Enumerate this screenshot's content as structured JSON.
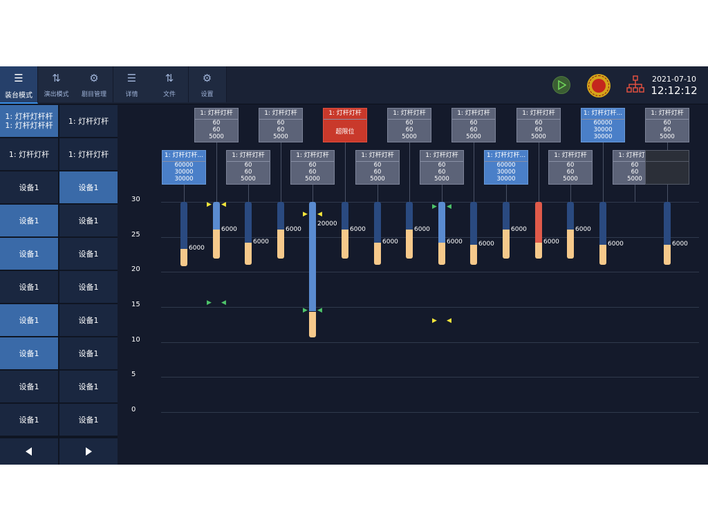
{
  "toolbar": {
    "items": [
      {
        "label": "装台模式",
        "icon": "list-icon"
      },
      {
        "label": "演出模式",
        "icon": "transfer-icon"
      },
      {
        "label": "剧目管理",
        "icon": "gear-icon"
      },
      {
        "label": "详情",
        "icon": "list-icon"
      },
      {
        "label": "文件",
        "icon": "transfer-icon"
      },
      {
        "label": "设置",
        "icon": "gear-icon"
      }
    ],
    "date": "2021-07-10",
    "time": "12:12:12"
  },
  "left_panel": {
    "rows": [
      [
        "1: 灯杆灯杆杆\n1: 灯杆灯杆杆",
        "1: 灯杆灯杆"
      ],
      [
        "1: 灯杆灯杆",
        "1: 灯杆灯杆"
      ],
      [
        "设备1",
        "设备1"
      ],
      [
        "设备1",
        "设备1"
      ],
      [
        "设备1",
        "设备1"
      ],
      [
        "设备1",
        "设备1"
      ],
      [
        "设备1",
        "设备1"
      ],
      [
        "设备1",
        "设备1"
      ],
      [
        "设备1",
        "设备1"
      ],
      [
        "设备1",
        "设备1"
      ]
    ],
    "prev_icon": "arrow-left-icon",
    "next_icon": "arrow-right-icon"
  },
  "chart_data": {
    "type": "bar",
    "yticks": [
      "30",
      "25",
      "20",
      "15",
      "10",
      "5",
      "0"
    ],
    "ylim": [
      0,
      30
    ],
    "grid": true,
    "bars": [
      {
        "top": 30,
        "split": 23.3,
        "bottom": 20.8,
        "label": "6000",
        "style": "normal"
      },
      {
        "top": 30,
        "split": 26.0,
        "bottom": 21.9,
        "label": "6000",
        "style": "light"
      },
      {
        "top": 30,
        "split": 24.2,
        "bottom": 21.0,
        "label": "6000",
        "style": "normal"
      },
      {
        "top": 30,
        "split": 26.0,
        "bottom": 21.9,
        "label": "6000",
        "style": "normal"
      },
      {
        "top": 30,
        "split": 14.4,
        "bottom": 10.7,
        "label": "20000",
        "style": "light"
      },
      {
        "top": 30,
        "split": 26.0,
        "bottom": 21.9,
        "label": "6000",
        "style": "normal"
      },
      {
        "top": 30,
        "split": 24.2,
        "bottom": 21.0,
        "label": "6000",
        "style": "normal"
      },
      {
        "top": 30,
        "split": 26.0,
        "bottom": 21.9,
        "label": "6000",
        "style": "normal"
      },
      {
        "top": 30,
        "split": 24.2,
        "bottom": 21.0,
        "label": "6000",
        "style": "light"
      },
      {
        "top": 30,
        "split": 23.9,
        "bottom": 21.0,
        "label": "6000",
        "style": "normal"
      },
      {
        "top": 30,
        "split": 26.0,
        "bottom": 21.9,
        "label": "6000",
        "style": "normal"
      },
      {
        "top": 30,
        "split": 24.2,
        "bottom": 21.9,
        "label": "6000",
        "style": "red"
      },
      {
        "top": 30,
        "split": 26.0,
        "bottom": 21.9,
        "label": "6000",
        "style": "normal"
      },
      {
        "top": 30,
        "split": 23.9,
        "bottom": 21.0,
        "label": "6000",
        "style": "normal"
      },
      null,
      {
        "top": 30,
        "split": 23.9,
        "bottom": 21.0,
        "label": "6000",
        "style": "normal"
      }
    ],
    "cards": [
      {
        "title": "1: 灯杆灯杆...",
        "lines": [
          "60000",
          "30000",
          "30000"
        ],
        "style": "blue"
      },
      {
        "title": "1: 灯杆灯杆",
        "lines": [
          "60",
          "60",
          "5000"
        ],
        "style": "gray"
      },
      {
        "title": "1: 灯杆灯杆",
        "lines": [
          "60",
          "60",
          "5000"
        ],
        "style": "gray"
      },
      {
        "title": "1: 灯杆灯杆",
        "lines": [
          "60",
          "60",
          "5000"
        ],
        "style": "gray"
      },
      {
        "title": "1: 灯杆灯杆",
        "lines": [
          "60",
          "60",
          "5000"
        ],
        "style": "gray"
      },
      {
        "title": "1: 灯杆灯杆",
        "lines": [
          "超限位"
        ],
        "style": "red"
      },
      {
        "title": "1: 灯杆灯杆",
        "lines": [
          "60",
          "60",
          "5000"
        ],
        "style": "gray"
      },
      {
        "title": "1: 灯杆灯杆",
        "lines": [
          "60",
          "60",
          "5000"
        ],
        "style": "gray"
      },
      {
        "title": "1: 灯杆灯杆",
        "lines": [
          "60",
          "60",
          "5000"
        ],
        "style": "gray"
      },
      {
        "title": "1: 灯杆灯杆",
        "lines": [
          "60",
          "60",
          "5000"
        ],
        "style": "gray"
      },
      {
        "title": "1: 灯杆灯杆...",
        "lines": [
          "60000",
          "30000",
          "30000"
        ],
        "style": "blue"
      },
      {
        "title": "1: 灯杆灯杆",
        "lines": [
          "60",
          "60",
          "5000"
        ],
        "style": "gray"
      },
      {
        "title": "1: 灯杆灯杆",
        "lines": [
          "60",
          "60",
          "5000"
        ],
        "style": "gray"
      },
      {
        "title": "1: 灯杆灯杆...",
        "lines": [
          "60000",
          "30000",
          "30000"
        ],
        "style": "blue"
      },
      {
        "title": "1: 灯杆灯杆",
        "lines": [
          "60",
          "60",
          "5000"
        ],
        "style": "gray"
      },
      {
        "title": "1: 灯杆灯杆",
        "lines": [
          "60",
          "60",
          "5000"
        ],
        "style": "gray"
      },
      {
        "title": "",
        "lines": [],
        "style": "empty"
      }
    ],
    "markers": [
      {
        "bar": 1,
        "value": 29.5,
        "left": "yellow",
        "right": "yellow"
      },
      {
        "bar": 1,
        "value": 15.5,
        "left": "green",
        "right": "green"
      },
      {
        "bar": 4,
        "value": 28.1,
        "left": "yellow",
        "right": "yellow"
      },
      {
        "bar": 4,
        "value": 14.4,
        "left": "green",
        "right": "green"
      },
      {
        "bar": 8,
        "value": 29.2,
        "left": "green",
        "right": "green"
      },
      {
        "bar": 8,
        "value": 12.9,
        "left": "yellow",
        "right": "yellow"
      }
    ]
  }
}
